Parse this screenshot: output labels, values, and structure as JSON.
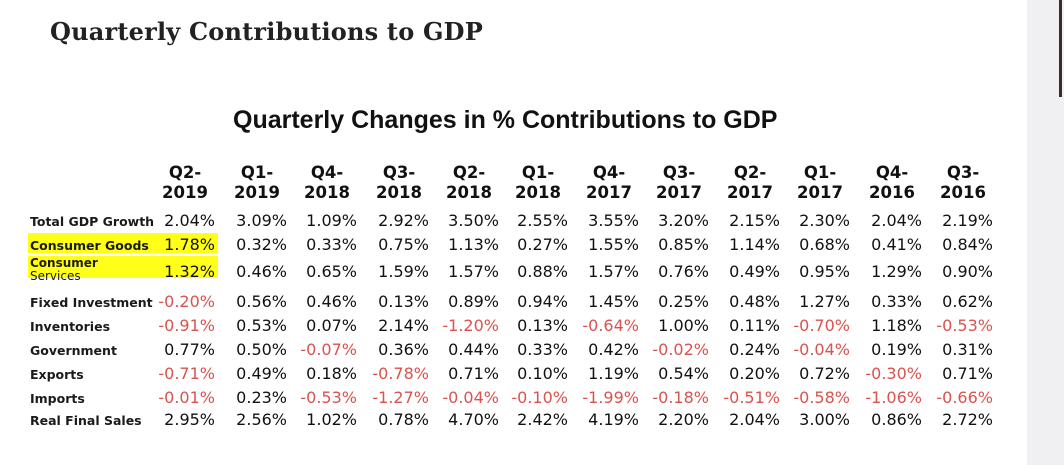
{
  "page": {
    "heading": "Quarterly Contributions to GDP"
  },
  "table": {
    "title": "Quarterly Changes in % Contributions to GDP",
    "quarters": [
      {
        "q": "Q2-",
        "y": "2019"
      },
      {
        "q": "Q1-",
        "y": "2019"
      },
      {
        "q": "Q4-",
        "y": "2018"
      },
      {
        "q": "Q3-",
        "y": "2018"
      },
      {
        "q": "Q2-",
        "y": "2018"
      },
      {
        "q": "Q1-",
        "y": "2018"
      },
      {
        "q": "Q4-",
        "y": "2017"
      },
      {
        "q": "Q3-",
        "y": "2017"
      },
      {
        "q": "Q2-",
        "y": "2017"
      },
      {
        "q": "Q1-",
        "y": "2017"
      },
      {
        "q": "Q4-",
        "y": "2016"
      },
      {
        "q": "Q3-",
        "y": "2016"
      }
    ],
    "rows": [
      {
        "label": "Total GDP Growth",
        "values": [
          "2.04%",
          "3.09%",
          "1.09%",
          "2.92%",
          "3.50%",
          "2.55%",
          "3.55%",
          "3.20%",
          "2.15%",
          "2.30%",
          "2.04%",
          "2.19%"
        ]
      },
      {
        "label": "Consumer Goods",
        "highlight": true,
        "values": [
          "1.78%",
          "0.32%",
          "0.33%",
          "0.75%",
          "1.13%",
          "0.27%",
          "1.55%",
          "0.85%",
          "1.14%",
          "0.68%",
          "0.41%",
          "0.84%"
        ]
      },
      {
        "label": "Consumer",
        "label2": "Services",
        "highlight": true,
        "values": [
          "1.32%",
          "0.46%",
          "0.65%",
          "1.59%",
          "1.57%",
          "0.88%",
          "1.57%",
          "0.76%",
          "0.49%",
          "0.95%",
          "1.29%",
          "0.90%"
        ]
      },
      {
        "label": "Fixed Investment",
        "values": [
          "-0.20%",
          "0.56%",
          "0.46%",
          "0.13%",
          "0.89%",
          "0.94%",
          "1.45%",
          "0.25%",
          "0.48%",
          "1.27%",
          "0.33%",
          "0.62%"
        ]
      },
      {
        "label": "Inventories",
        "values": [
          "-0.91%",
          "0.53%",
          "0.07%",
          "2.14%",
          "-1.20%",
          "0.13%",
          "-0.64%",
          "1.00%",
          "0.11%",
          "-0.70%",
          "1.18%",
          "-0.53%"
        ]
      },
      {
        "label": "Government",
        "values": [
          "0.77%",
          "0.50%",
          "-0.07%",
          "0.36%",
          "0.44%",
          "0.33%",
          "0.42%",
          "-0.02%",
          "0.24%",
          "-0.04%",
          "0.19%",
          "0.31%"
        ]
      },
      {
        "label": "Exports",
        "values": [
          "-0.71%",
          "0.49%",
          "0.18%",
          "-0.78%",
          "0.71%",
          "0.10%",
          "1.19%",
          "0.54%",
          "0.20%",
          "0.72%",
          "-0.30%",
          "0.71%"
        ]
      },
      {
        "label": "Imports",
        "values": [
          "-0.01%",
          "0.23%",
          "-0.53%",
          "-1.27%",
          "-0.04%",
          "-0.10%",
          "-1.99%",
          "-0.18%",
          "-0.51%",
          "-0.58%",
          "-1.06%",
          "-0.66%"
        ]
      },
      {
        "label": "Real Final Sales",
        "values": [
          "2.95%",
          "2.56%",
          "1.02%",
          "0.78%",
          "4.70%",
          "2.42%",
          "4.19%",
          "2.20%",
          "2.04%",
          "3.00%",
          "0.86%",
          "2.72%"
        ]
      }
    ]
  },
  "colors": {
    "positive": "#111111",
    "negative": "#d9534f",
    "highlight": "#ffff1a"
  }
}
